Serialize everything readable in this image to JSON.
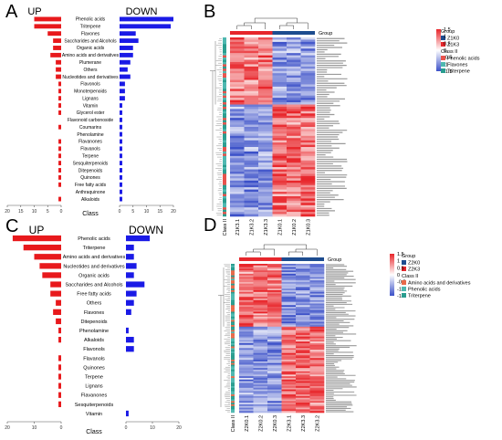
{
  "figure": {
    "panel_letters": [
      "A",
      "B",
      "C",
      "D"
    ]
  },
  "colors": {
    "up_bar": "#e8191c",
    "down_bar": "#1a1ae6",
    "heat_high": "#e8262b",
    "heat_mid": "#ffffff",
    "heat_low": "#3b50c8",
    "group_red": "#e6272c",
    "group_blue": "#1d4c8f",
    "class_phenolic": "#e8534c",
    "class_flavones": "#4fb8b0",
    "class_triterpene": "#2a9d8f",
    "class_amino": "#e86a4a"
  },
  "chart_data": [
    {
      "panel": "A",
      "type": "bar",
      "title": "",
      "xlabel": "Class",
      "up_label": "UP",
      "down_label": "DOWN",
      "categories": [
        "Phenolic acids",
        "Triterpene",
        "Flavones",
        "Saccharides and Alcohols",
        "Organic acids",
        "Amino acids and derivatives",
        "Plumerane",
        "Others",
        "Nucleotides and derivatives",
        "Flavonols",
        "Monoterpenoids",
        "Lignans",
        "Vitamin",
        "Glycerol ester",
        "Flavonoid carbonoside",
        "Coumarins",
        "Phenolamine",
        "Flavanones",
        "Flavanols",
        "Terpene",
        "Sesquiterpenoids",
        "Ditepenoids",
        "Quinones",
        "Free fatty acids",
        "Anthraquinone",
        "Alkaloids"
      ],
      "series": [
        {
          "name": "UP",
          "values": [
            10,
            10,
            5,
            3,
            3,
            4,
            2,
            2,
            2,
            1,
            1,
            1,
            1,
            1,
            0,
            1,
            0,
            1,
            1,
            1,
            1,
            1,
            1,
            1,
            0,
            1
          ]
        },
        {
          "name": "DOWN",
          "values": [
            20,
            19,
            6,
            7,
            5,
            5,
            4,
            3,
            4,
            2,
            2,
            2,
            1,
            1,
            1,
            1,
            1,
            1,
            1,
            1,
            1,
            1,
            1,
            1,
            1,
            1
          ]
        }
      ],
      "up_ticks": [
        "20",
        "15",
        "10",
        "5",
        "0"
      ],
      "down_ticks": [
        "0",
        "5",
        "10",
        "15",
        "20"
      ],
      "xlim": [
        0,
        20
      ]
    },
    {
      "panel": "C",
      "type": "bar",
      "title": "",
      "xlabel": "Class",
      "up_label": "UP",
      "down_label": "DOWN",
      "categories": [
        "Phenolic acids",
        "Triterpene",
        "Amino acids and derivatives",
        "Nucleotides and derivatives",
        "Organic acids",
        "Saccharides and Alcohols",
        "Free fatty acids",
        "Others",
        "Flavones",
        "Ditepenoids",
        "Phenolamine",
        "Alkaloids",
        "Flavonols",
        "Flavanols",
        "Quinones",
        "Terpene",
        "Lignans",
        "Flavanones",
        "Sesquiterpenoids",
        "Vitamin"
      ],
      "series": [
        {
          "name": "UP",
          "values": [
            18,
            14,
            10,
            8,
            7,
            4,
            4,
            2,
            3,
            2,
            1,
            1,
            0,
            1,
            1,
            1,
            1,
            1,
            1,
            0
          ]
        },
        {
          "name": "DOWN",
          "values": [
            9,
            3,
            3,
            4,
            3,
            7,
            4,
            3,
            2,
            0,
            1,
            3,
            3,
            0,
            0,
            0,
            0,
            0,
            0,
            1
          ]
        }
      ],
      "up_ticks": [
        "20",
        "10",
        "0"
      ],
      "down_ticks": [
        "0",
        "10",
        "20"
      ],
      "xlim": [
        0,
        20
      ]
    },
    {
      "panel": "B",
      "type": "heatmap",
      "title": "",
      "samples": [
        "Z1K3.1",
        "Z1K3.2",
        "Z1K3.3",
        "Z1K0.1",
        "Z1K0.2",
        "Z1K0.3"
      ],
      "row_count": 80,
      "legend": {
        "group_title": "Group",
        "groups": [
          "Z1K0",
          "Z1K3"
        ],
        "class_title": "Class II",
        "classes": [
          "Phenolic acids",
          "Flavones",
          "Triterpene"
        ],
        "scale_ticks": [
          "1.5",
          "1",
          "0.5",
          "0",
          "-0.5",
          "-1",
          "-1.5"
        ],
        "scale_range": [
          -1.5,
          1.5
        ]
      },
      "class_axis_label": "Class II",
      "group_label": "Group"
    },
    {
      "panel": "D",
      "type": "heatmap",
      "title": "",
      "samples": [
        "Z2K0.1",
        "Z2K0.2",
        "Z2K0.3",
        "Z2K3.1",
        "Z2K3.3",
        "Z2K3.2"
      ],
      "row_count": 90,
      "legend": {
        "group_title": "Group",
        "groups": [
          "Z2K0",
          "Z2K3"
        ],
        "class_title": "Class II",
        "classes": [
          "Amino acids and derivatives",
          "Phenolic acids",
          "Triterpene"
        ],
        "scale_ticks": [
          "1.5",
          "1",
          "0.5",
          "0",
          "-0.5",
          "-1",
          "-1.5"
        ],
        "scale_range": [
          -1.5,
          1.5
        ]
      },
      "class_axis_label": "Class II",
      "group_label": "Group"
    }
  ]
}
